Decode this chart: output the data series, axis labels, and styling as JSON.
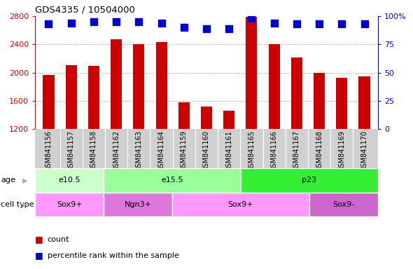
{
  "title": "GDS4335 / 10504000",
  "samples": [
    "GSM841156",
    "GSM841157",
    "GSM841158",
    "GSM841162",
    "GSM841163",
    "GSM841164",
    "GSM841159",
    "GSM841160",
    "GSM841161",
    "GSM841165",
    "GSM841166",
    "GSM841167",
    "GSM841168",
    "GSM841169",
    "GSM841170"
  ],
  "counts": [
    1970,
    2110,
    2100,
    2470,
    2400,
    2430,
    1580,
    1520,
    1460,
    2790,
    2400,
    2220,
    2000,
    1930,
    1950
  ],
  "percentile": [
    93,
    94,
    95,
    95,
    95,
    94,
    90,
    89,
    89,
    98,
    94,
    93,
    93,
    93,
    93
  ],
  "ylim_left": [
    1200,
    2800
  ],
  "ylim_right": [
    0,
    100
  ],
  "bar_color": "#cc0000",
  "dot_color": "#0000cc",
  "grid_color": "#888888",
  "age_groups": [
    {
      "label": "e10.5",
      "start": 0,
      "end": 3,
      "color": "#ccffcc"
    },
    {
      "label": "e15.5",
      "start": 3,
      "end": 9,
      "color": "#99ff99"
    },
    {
      "label": "p23",
      "start": 9,
      "end": 15,
      "color": "#33ee33"
    }
  ],
  "cell_groups": [
    {
      "label": "Sox9+",
      "start": 0,
      "end": 3,
      "color": "#ff99ff"
    },
    {
      "label": "Ngn3+",
      "start": 3,
      "end": 6,
      "color": "#dd77dd"
    },
    {
      "label": "Sox9+",
      "start": 6,
      "end": 12,
      "color": "#ff99ff"
    },
    {
      "label": "Sox9-",
      "start": 12,
      "end": 15,
      "color": "#cc66cc"
    }
  ],
  "left_yticks": [
    1200,
    1600,
    2000,
    2400,
    2800
  ],
  "right_yticks": [
    0,
    25,
    50,
    75,
    100
  ],
  "bar_width": 0.5,
  "dot_size": 55,
  "ylabel_left_color": "#cc0000",
  "ylabel_right_color": "#0000cc",
  "xtick_bg": "#d0d0d0",
  "xtick_sep_color": "#ffffff",
  "label_fontsize": 7,
  "tick_fontsize": 8,
  "row_label_fontsize": 8,
  "legend_fontsize": 8
}
